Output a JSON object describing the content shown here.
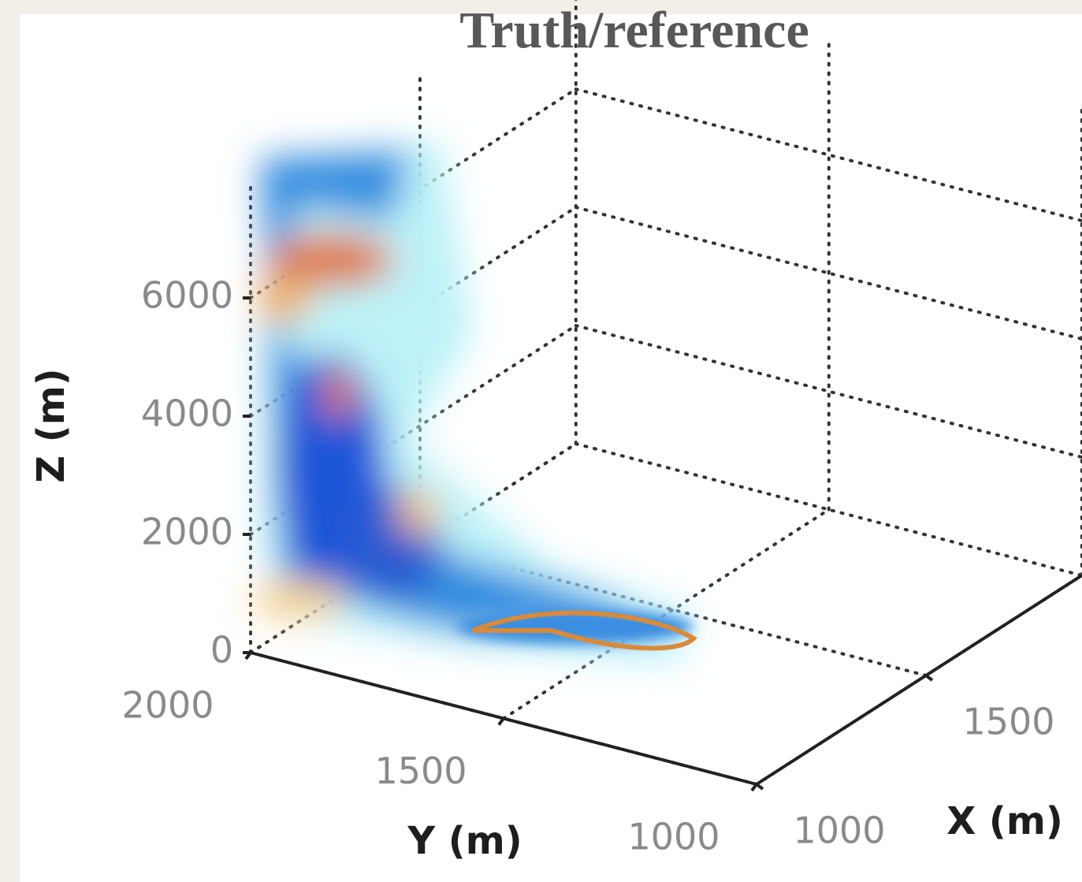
{
  "chart_data": {
    "type": "volume3d",
    "title": "Truth/reference",
    "xlabel": "X (m)",
    "ylabel": "Y (m)",
    "zlabel": "Z (m)",
    "xlim": [
      1000,
      1960
    ],
    "xticks": [
      1000,
      1500
    ],
    "ylim": [
      1000,
      2000
    ],
    "yticks": [
      1000,
      1500,
      2000
    ],
    "zlim": [
      0,
      8000
    ],
    "zticks": [
      0,
      2000,
      4000,
      6000
    ],
    "grid": true
  }
}
